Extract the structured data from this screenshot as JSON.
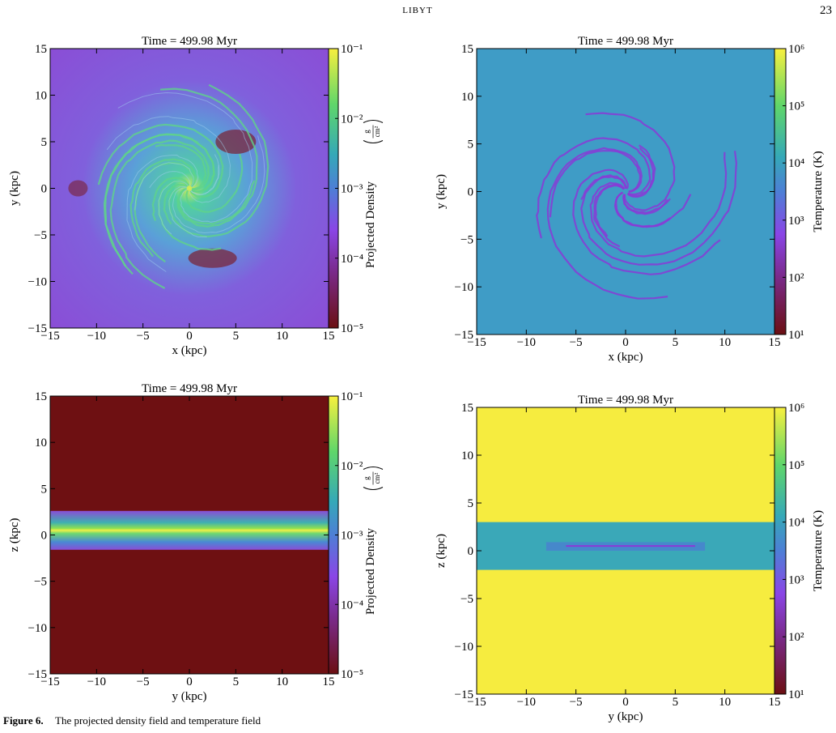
{
  "header": {
    "running_title": "LIBYT",
    "page_number": "23"
  },
  "figure": {
    "panels": [
      {
        "title": "Time = 499.98 Myr",
        "xlabel": "x  (kpc)",
        "ylabel": "y  (kpc)",
        "xlim": [
          -15,
          15
        ],
        "ylim": [
          -15,
          15
        ],
        "xticks": [
          {
            "value": -15,
            "label": "−15"
          },
          {
            "value": -10,
            "label": "−10"
          },
          {
            "value": -5,
            "label": "−5"
          },
          0,
          5,
          10,
          15
        ],
        "yticks": [
          {
            "value": -15,
            "label": "−15"
          },
          {
            "value": -10,
            "label": "−10"
          },
          {
            "value": -5,
            "label": "−5"
          },
          0,
          5,
          10,
          15
        ],
        "colorbar": {
          "label": "Projected Density",
          "units_numerator": "g",
          "units_denominator": "cm²",
          "log": true,
          "lim": [
            1e-05,
            0.1
          ],
          "ticks": [
            {
              "value": 1e-05,
              "label": "10⁻⁵"
            },
            {
              "value": 0.0001,
              "label": "10⁻⁴"
            },
            {
              "value": 0.001,
              "label": "10⁻³"
            },
            {
              "value": 0.01,
              "label": "10⁻²"
            },
            {
              "value": 0.1,
              "label": "10⁻¹"
            }
          ]
        },
        "image": "face-on-density"
      },
      {
        "title": "Time = 499.98 Myr",
        "xlabel": "x  (kpc)",
        "ylabel": "y  (kpc)",
        "xlim": [
          -15,
          15
        ],
        "ylim": [
          -15,
          15
        ],
        "xticks": [
          {
            "value": -15,
            "label": "−15"
          },
          {
            "value": -10,
            "label": "−10"
          },
          {
            "value": -5,
            "label": "−5"
          },
          0,
          5,
          10,
          15
        ],
        "yticks": [
          {
            "value": -15,
            "label": "−15"
          },
          {
            "value": -10,
            "label": "−10"
          },
          {
            "value": -5,
            "label": "−5"
          },
          0,
          5,
          10,
          15
        ],
        "colorbar": {
          "label": "Temperature  (K)",
          "log": true,
          "lim": [
            10,
            1000000
          ],
          "ticks": [
            {
              "value": 10,
              "label": "10¹"
            },
            {
              "value": 100,
              "label": "10²"
            },
            {
              "value": 1000,
              "label": "10³"
            },
            {
              "value": 10000,
              "label": "10⁴"
            },
            {
              "value": 100000,
              "label": "10⁵"
            },
            {
              "value": 1000000,
              "label": "10⁶"
            }
          ]
        },
        "image": "face-on-temperature"
      },
      {
        "title": "Time = 499.98 Myr",
        "xlabel": "y  (kpc)",
        "ylabel": "z  (kpc)",
        "xlim": [
          -15,
          15
        ],
        "ylim": [
          -15,
          15
        ],
        "xticks": [
          {
            "value": -15,
            "label": "−15"
          },
          {
            "value": -10,
            "label": "−10"
          },
          {
            "value": -5,
            "label": "−5"
          },
          0,
          5,
          10,
          15
        ],
        "yticks": [
          {
            "value": -15,
            "label": "−15"
          },
          {
            "value": -10,
            "label": "−10"
          },
          {
            "value": -5,
            "label": "−5"
          },
          0,
          5,
          10,
          15
        ],
        "colorbar": {
          "label": "Projected Density",
          "units_numerator": "g",
          "units_denominator": "cm²",
          "log": true,
          "lim": [
            1e-05,
            0.1
          ],
          "ticks": [
            {
              "value": 1e-05,
              "label": "10⁻⁵"
            },
            {
              "value": 0.0001,
              "label": "10⁻⁴"
            },
            {
              "value": 0.001,
              "label": "10⁻³"
            },
            {
              "value": 0.01,
              "label": "10⁻²"
            },
            {
              "value": 0.1,
              "label": "10⁻¹"
            }
          ]
        },
        "image": "edge-on-density"
      },
      {
        "title": "Time = 499.98 Myr",
        "xlabel": "y  (kpc)",
        "ylabel": "z  (kpc)",
        "xlim": [
          -15,
          15
        ],
        "ylim": [
          -15,
          15
        ],
        "xticks": [
          {
            "value": -15,
            "label": "−15"
          },
          {
            "value": -10,
            "label": "−10"
          },
          {
            "value": -5,
            "label": "−5"
          },
          0,
          5,
          10,
          15
        ],
        "yticks": [
          {
            "value": -15,
            "label": "−15"
          },
          {
            "value": -10,
            "label": "−10"
          },
          {
            "value": -5,
            "label": "−5"
          },
          0,
          5,
          10,
          15
        ],
        "colorbar": {
          "label": "Temperature  (K)",
          "log": true,
          "lim": [
            10,
            1000000
          ],
          "ticks": [
            {
              "value": 10,
              "label": "10¹"
            },
            {
              "value": 100,
              "label": "10²"
            },
            {
              "value": 1000,
              "label": "10³"
            },
            {
              "value": 10000,
              "label": "10⁴"
            },
            {
              "value": 100000,
              "label": "10⁵"
            },
            {
              "value": 1000000,
              "label": "10⁶"
            }
          ]
        },
        "image": "edge-on-temperature"
      }
    ],
    "caption_label": "Figure 6.",
    "caption_text": "The projected density field and temperature field"
  }
}
